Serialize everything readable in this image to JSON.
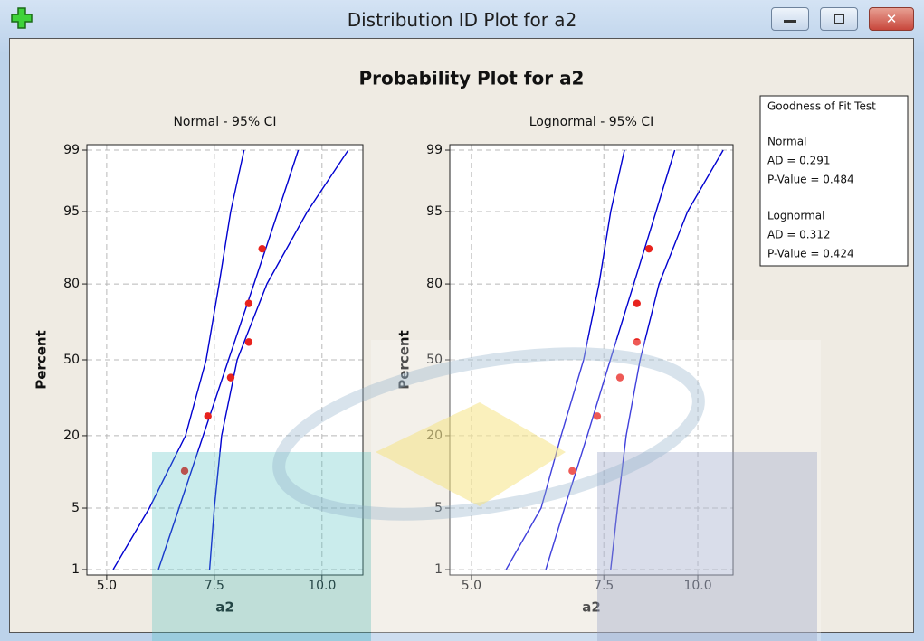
{
  "window": {
    "title": "Distribution ID Plot for a2"
  },
  "title": "Probability Plot for a2",
  "goodness_of_fit": {
    "title": "Goodness of Fit Test",
    "groups": [
      {
        "name": "Normal",
        "lines": [
          "AD = 0.291",
          "P-Value = 0.484"
        ]
      },
      {
        "name": "Lognormal",
        "lines": [
          "AD = 0.312",
          "P-Value = 0.424"
        ]
      }
    ]
  },
  "chart_data": [
    {
      "type": "probability",
      "title": "Normal - 95% CI",
      "x_label": "a2",
      "y_label": "Percent",
      "xscale": "linear",
      "xlim": [
        4.54,
        10.95
      ],
      "xticks": [
        {
          "value": 5,
          "label": "5.0"
        },
        {
          "value": 7.5,
          "label": "7.5"
        },
        {
          "value": 10,
          "label": "10.0"
        }
      ],
      "ylim": [
        0.85,
        99.15
      ],
      "yticks": [
        99,
        95,
        80,
        50,
        20,
        5,
        1
      ],
      "grid": true,
      "points": {
        "color": "#e8231e",
        "x": [
          6.81,
          7.35,
          7.88,
          8.3,
          8.3,
          8.61
        ],
        "y": [
          10.9,
          26.6,
          42.2,
          57.8,
          73.4,
          89.1
        ]
      },
      "lines": {
        "y": [
          99,
          95,
          80,
          50,
          20,
          5,
          1
        ],
        "series": [
          {
            "color": "#0000d0",
            "x": [
              8.19,
              7.88,
              7.61,
              7.31,
              6.83,
              5.99,
              5.15
            ]
          },
          {
            "color": "#0000d0",
            "x": [
              9.45,
              8.98,
              8.42,
              7.83,
              7.24,
              6.68,
              6.2
            ]
          },
          {
            "color": "#0000d0",
            "x": [
              10.61,
              9.66,
              8.72,
              8.03,
              7.67,
              7.5,
              7.39
            ]
          }
        ]
      }
    },
    {
      "type": "probability",
      "title": "Lognormal - 95% CI",
      "x_label": "a2",
      "y_label": "Percent",
      "xscale": "log",
      "xlim": [
        4.68,
        11.14
      ],
      "xticks": [
        {
          "value": 5,
          "label": "5.0"
        },
        {
          "value": 7.5,
          "label": "7.5"
        },
        {
          "value": 10,
          "label": "10.0"
        }
      ],
      "ylim": [
        0.85,
        99.15
      ],
      "yticks": [
        99,
        95,
        80,
        50,
        20,
        5,
        1
      ],
      "grid": true,
      "points": {
        "color": "#e8231e",
        "x": [
          6.81,
          7.35,
          7.88,
          8.3,
          8.3,
          8.61
        ],
        "y": [
          10.9,
          26.6,
          42.2,
          57.8,
          73.4,
          89.1
        ]
      },
      "lines": {
        "y": [
          99,
          95,
          80,
          50,
          20,
          5,
          1
        ],
        "series": [
          {
            "color": "#0000d0",
            "x": [
              7.99,
              7.66,
              7.39,
              7.05,
              6.58,
              6.19,
              5.56
            ]
          },
          {
            "color": "#0000d0",
            "x": [
              9.32,
              8.8,
              8.22,
              7.65,
              7.13,
              6.65,
              6.28
            ]
          },
          {
            "color": "#0000d0",
            "x": [
              10.81,
              9.69,
              8.88,
              8.38,
              8.03,
              7.82,
              7.66
            ]
          }
        ]
      }
    }
  ]
}
